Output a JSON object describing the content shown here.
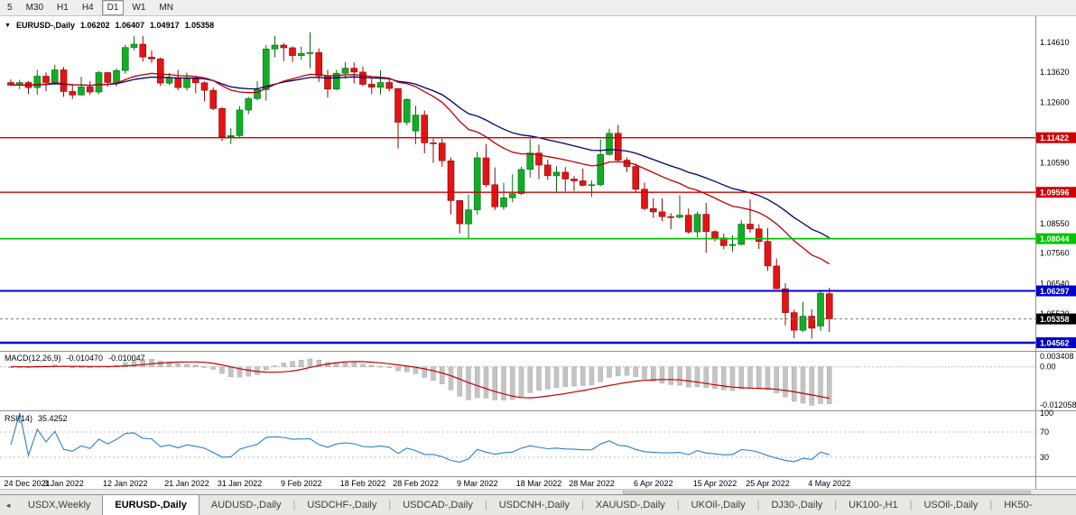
{
  "toolbar": {
    "timeframes": [
      {
        "label": "5",
        "active": false
      },
      {
        "label": "M30",
        "active": false
      },
      {
        "label": "H1",
        "active": false
      },
      {
        "label": "H4",
        "active": false
      },
      {
        "label": "D1",
        "active": true
      },
      {
        "label": "W1",
        "active": false
      },
      {
        "label": "MN",
        "active": false
      }
    ]
  },
  "chart": {
    "dropdown_glyph": "▼",
    "symbol_label": "EURUSD-,Daily",
    "ohlc": {
      "open": "1.06202",
      "high": "1.06407",
      "low": "1.04917",
      "close": "1.05358"
    }
  },
  "macd_panel": {
    "label": "MACD(12,26,9)",
    "main_value": "-0.010470",
    "signal_value": "-0.010047"
  },
  "rsi_panel": {
    "label": "RSI(14)",
    "value": "35.4252"
  },
  "tabbar": {
    "scroll_left_glyph": "◄",
    "separator": "|",
    "tabs": [
      {
        "label": "USDX,Weekly",
        "active": false
      },
      {
        "label": "EURUSD-,Daily",
        "active": true
      },
      {
        "label": "AUDUSD-,Daily",
        "active": false
      },
      {
        "label": "USDCHF-,Daily",
        "active": false
      },
      {
        "label": "USDCAD-,Daily",
        "active": false
      },
      {
        "label": "USDCNH-,Daily",
        "active": false
      },
      {
        "label": "XAUUSD-,Daily",
        "active": false
      },
      {
        "label": "UKOil-,Daily",
        "active": false
      },
      {
        "label": "DJ30-,Daily",
        "active": false
      },
      {
        "label": "UK100-,H1",
        "active": false
      },
      {
        "label": "USOil-,Daily",
        "active": false
      },
      {
        "label": "HK50-",
        "active": false
      }
    ]
  },
  "chart_data": {
    "type": "candlestick",
    "symbol": "EURUSD-",
    "timeframe": "Daily",
    "current_bar": {
      "open": 1.06202,
      "high": 1.06407,
      "low": 1.04917,
      "close": 1.05358
    },
    "price_axis": {
      "min": 1.0429,
      "max": 1.15487,
      "visible_ticks": [
        "1.14610",
        "1.13620",
        "1.12600",
        "1.10590",
        "1.08550",
        "1.07560",
        "1.06540",
        "1.05520"
      ]
    },
    "horizontal_lines": [
      {
        "price": 1.11422,
        "label": "1.11422",
        "color": "#d00000",
        "width": 1.4
      },
      {
        "price": 1.09596,
        "label": "1.09596",
        "color": "#d00000",
        "width": 1.4
      },
      {
        "price": 1.08044,
        "label": "1.08044",
        "color": "#00c400",
        "width": 1.8
      },
      {
        "price": 1.06297,
        "label": "1.06297",
        "color": "#0000c8",
        "width": 2
      },
      {
        "price": 1.04562,
        "label": "1.04562",
        "color": "#0000c8",
        "width": 2.4
      }
    ],
    "current_price": {
      "price": 1.05358,
      "label": "1.05358",
      "color": "#000000"
    },
    "moving_averages": [
      {
        "name": "slow-ma",
        "period": 34,
        "color": "#000070"
      },
      {
        "name": "fast-ma",
        "period": 21,
        "color": "#c00000"
      }
    ],
    "candle_colors": {
      "up": "#12ad26",
      "up_border": "#066a12",
      "down": "#e21414",
      "down_border": "#8c0808"
    },
    "candles": [
      [
        1.1327,
        1.1337,
        1.1317,
        1.1318
      ],
      [
        1.1318,
        1.1336,
        1.1305,
        1.1327
      ],
      [
        1.1327,
        1.1332,
        1.1288,
        1.131
      ],
      [
        1.131,
        1.1369,
        1.1286,
        1.1348
      ],
      [
        1.1348,
        1.1361,
        1.1298,
        1.1327
      ],
      [
        1.1327,
        1.1386,
        1.132,
        1.1369
      ],
      [
        1.1369,
        1.1379,
        1.1279,
        1.1297
      ],
      [
        1.1297,
        1.1323,
        1.1272,
        1.1285
      ],
      [
        1.1285,
        1.1346,
        1.1284,
        1.1312
      ],
      [
        1.1312,
        1.1332,
        1.1285,
        1.1295
      ],
      [
        1.1295,
        1.1365,
        1.1288,
        1.136
      ],
      [
        1.136,
        1.1362,
        1.1313,
        1.1327
      ],
      [
        1.1327,
        1.1374,
        1.1314,
        1.1367
      ],
      [
        1.1367,
        1.1453,
        1.1356,
        1.1444
      ],
      [
        1.1444,
        1.1482,
        1.1435,
        1.1455
      ],
      [
        1.1455,
        1.1483,
        1.1397,
        1.1412
      ],
      [
        1.1412,
        1.1435,
        1.1392,
        1.1406
      ],
      [
        1.1406,
        1.1411,
        1.1315,
        1.1325
      ],
      [
        1.1325,
        1.1359,
        1.1318,
        1.1343
      ],
      [
        1.1343,
        1.1369,
        1.1301,
        1.131
      ],
      [
        1.131,
        1.136,
        1.13,
        1.1343
      ],
      [
        1.1343,
        1.1348,
        1.1291,
        1.1326
      ],
      [
        1.1326,
        1.1331,
        1.1264,
        1.1301
      ],
      [
        1.1301,
        1.131,
        1.1234,
        1.124
      ],
      [
        1.124,
        1.1245,
        1.1131,
        1.1145
      ],
      [
        1.1145,
        1.1174,
        1.1121,
        1.1149
      ],
      [
        1.1149,
        1.1248,
        1.1141,
        1.1235
      ],
      [
        1.1235,
        1.1279,
        1.1221,
        1.1273
      ],
      [
        1.1273,
        1.1331,
        1.1267,
        1.1303
      ],
      [
        1.1303,
        1.1452,
        1.1266,
        1.1439
      ],
      [
        1.1439,
        1.1483,
        1.1411,
        1.1452
      ],
      [
        1.1452,
        1.1459,
        1.1398,
        1.1443
      ],
      [
        1.1443,
        1.1448,
        1.1396,
        1.1417
      ],
      [
        1.1417,
        1.1447,
        1.1403,
        1.1424
      ],
      [
        1.1424,
        1.1495,
        1.1375,
        1.1427
      ],
      [
        1.1427,
        1.1441,
        1.1329,
        1.1349
      ],
      [
        1.1349,
        1.1369,
        1.1277,
        1.1305
      ],
      [
        1.1305,
        1.1369,
        1.1301,
        1.1358
      ],
      [
        1.1358,
        1.1395,
        1.134,
        1.1375
      ],
      [
        1.1375,
        1.1394,
        1.1324,
        1.1362
      ],
      [
        1.1362,
        1.138,
        1.1315,
        1.1321
      ],
      [
        1.1321,
        1.134,
        1.1288,
        1.1311
      ],
      [
        1.1311,
        1.1368,
        1.1287,
        1.1327
      ],
      [
        1.1327,
        1.1343,
        1.1297,
        1.1307
      ],
      [
        1.1307,
        1.1308,
        1.1106,
        1.1194
      ],
      [
        1.1194,
        1.1274,
        1.1184,
        1.127
      ],
      [
        1.1165,
        1.1249,
        1.1121,
        1.1218
      ],
      [
        1.1218,
        1.1233,
        1.109,
        1.1125
      ],
      [
        1.1125,
        1.1139,
        1.1058,
        1.1124
      ],
      [
        1.1124,
        1.1139,
        1.1045,
        1.1065
      ],
      [
        1.1065,
        1.1076,
        1.0885,
        1.0932
      ],
      [
        1.0932,
        1.0932,
        1.0822,
        1.0854
      ],
      [
        1.0854,
        1.0952,
        1.0804,
        1.0901
      ],
      [
        1.0901,
        1.1095,
        1.0884,
        1.1075
      ],
      [
        1.1075,
        1.1121,
        1.0977,
        1.0985
      ],
      [
        1.0985,
        1.1043,
        1.09,
        1.0911
      ],
      [
        1.0911,
        1.0991,
        1.0901,
        1.0941
      ],
      [
        1.0941,
        1.102,
        1.0926,
        1.0955
      ],
      [
        1.0955,
        1.1046,
        1.095,
        1.1036
      ],
      [
        1.1036,
        1.1137,
        1.1009,
        1.1091
      ],
      [
        1.1091,
        1.1119,
        1.1003,
        1.1051
      ],
      [
        1.1051,
        1.1069,
        1.1001,
        1.1015
      ],
      [
        1.1015,
        1.1047,
        1.0962,
        1.1027
      ],
      [
        1.1027,
        1.1044,
        1.0963,
        1.1004
      ],
      [
        1.1004,
        1.1014,
        1.0964,
        1.0998
      ],
      [
        1.0998,
        1.1039,
        1.0979,
        1.0983
      ],
      [
        1.0983,
        1.0999,
        1.0944,
        1.0985
      ],
      [
        1.0985,
        1.1137,
        1.098,
        1.1086
      ],
      [
        1.1086,
        1.1172,
        1.1083,
        1.1157
      ],
      [
        1.1157,
        1.1185,
        1.106,
        1.1067
      ],
      [
        1.1067,
        1.1076,
        1.1027,
        1.1046
      ],
      [
        1.1046,
        1.1056,
        1.096,
        1.097
      ],
      [
        1.097,
        1.0992,
        1.0899,
        1.0905
      ],
      [
        1.0905,
        1.0939,
        1.0874,
        1.0894
      ],
      [
        1.0894,
        1.0939,
        1.0863,
        1.0878
      ],
      [
        1.0878,
        1.089,
        1.0836,
        1.0876
      ],
      [
        1.0876,
        1.095,
        1.0872,
        1.0883
      ],
      [
        1.0883,
        1.0905,
        1.0821,
        1.0827
      ],
      [
        1.0827,
        1.0895,
        1.0809,
        1.0886
      ],
      [
        1.0886,
        1.0924,
        1.0757,
        1.0828
      ],
      [
        1.0828,
        1.0832,
        1.0795,
        1.0807
      ],
      [
        1.0807,
        1.0822,
        1.0769,
        1.0781
      ],
      [
        1.0781,
        1.0815,
        1.0761,
        1.0785
      ],
      [
        1.0785,
        1.0867,
        1.0782,
        1.0853
      ],
      [
        1.0853,
        1.0936,
        1.0824,
        1.0837
      ],
      [
        1.0837,
        1.0852,
        1.077,
        1.0795
      ],
      [
        1.0795,
        1.084,
        1.0697,
        1.0713
      ],
      [
        1.0713,
        1.0738,
        1.0635,
        1.0637
      ],
      [
        1.0637,
        1.0655,
        1.0514,
        1.0557
      ],
      [
        1.0557,
        1.0567,
        1.0471,
        1.0498
      ],
      [
        1.0498,
        1.0593,
        1.0492,
        1.0545
      ],
      [
        1.0545,
        1.0568,
        1.047,
        1.0505
      ],
      [
        1.0512,
        1.0632,
        1.0495,
        1.0622
      ],
      [
        1.06202,
        1.06407,
        1.04917,
        1.05358
      ]
    ],
    "x_labels": [
      {
        "text": "24 Dec 2021",
        "index": 0
      },
      {
        "text": "3 Jan 2022",
        "index": 6
      },
      {
        "text": "12 Jan 2022",
        "index": 13
      },
      {
        "text": "21 Jan 2022",
        "index": 20
      },
      {
        "text": "31 Jan 2022",
        "index": 26
      },
      {
        "text": "9 Feb 2022",
        "index": 33
      },
      {
        "text": "18 Feb 2022",
        "index": 40
      },
      {
        "text": "28 Feb 2022",
        "index": 46
      },
      {
        "text": "9 Mar 2022",
        "index": 53
      },
      {
        "text": "18 Mar 2022",
        "index": 60
      },
      {
        "text": "28 Mar 2022",
        "index": 66
      },
      {
        "text": "6 Apr 2022",
        "index": 73
      },
      {
        "text": "15 Apr 2022",
        "index": 80
      },
      {
        "text": "25 Apr 2022",
        "index": 86
      },
      {
        "text": "4 May 2022",
        "index": 93
      }
    ],
    "macd": {
      "fast": 12,
      "slow": 26,
      "signal": 9,
      "main_value": -0.01047,
      "signal_value": -0.010047,
      "histogram_color": "#c4c4c4",
      "signal_color": "#c00000",
      "range": {
        "min": -0.0135,
        "max": 0.0042
      },
      "axis_ticks": [
        {
          "value": 0.003408,
          "label": "0.003408"
        },
        {
          "value": 0,
          "label": "0.00"
        },
        {
          "value": -0.012058,
          "label": "-0.012058"
        }
      ]
    },
    "rsi": {
      "period": 14,
      "current": 35.4252,
      "color": "#2a7fc9",
      "levels": [
        70,
        30
      ],
      "axis_ticks": [
        {
          "value": 100,
          "label": "100"
        },
        {
          "value": 70,
          "label": "70"
        },
        {
          "value": 30,
          "label": "30"
        }
      ]
    }
  }
}
